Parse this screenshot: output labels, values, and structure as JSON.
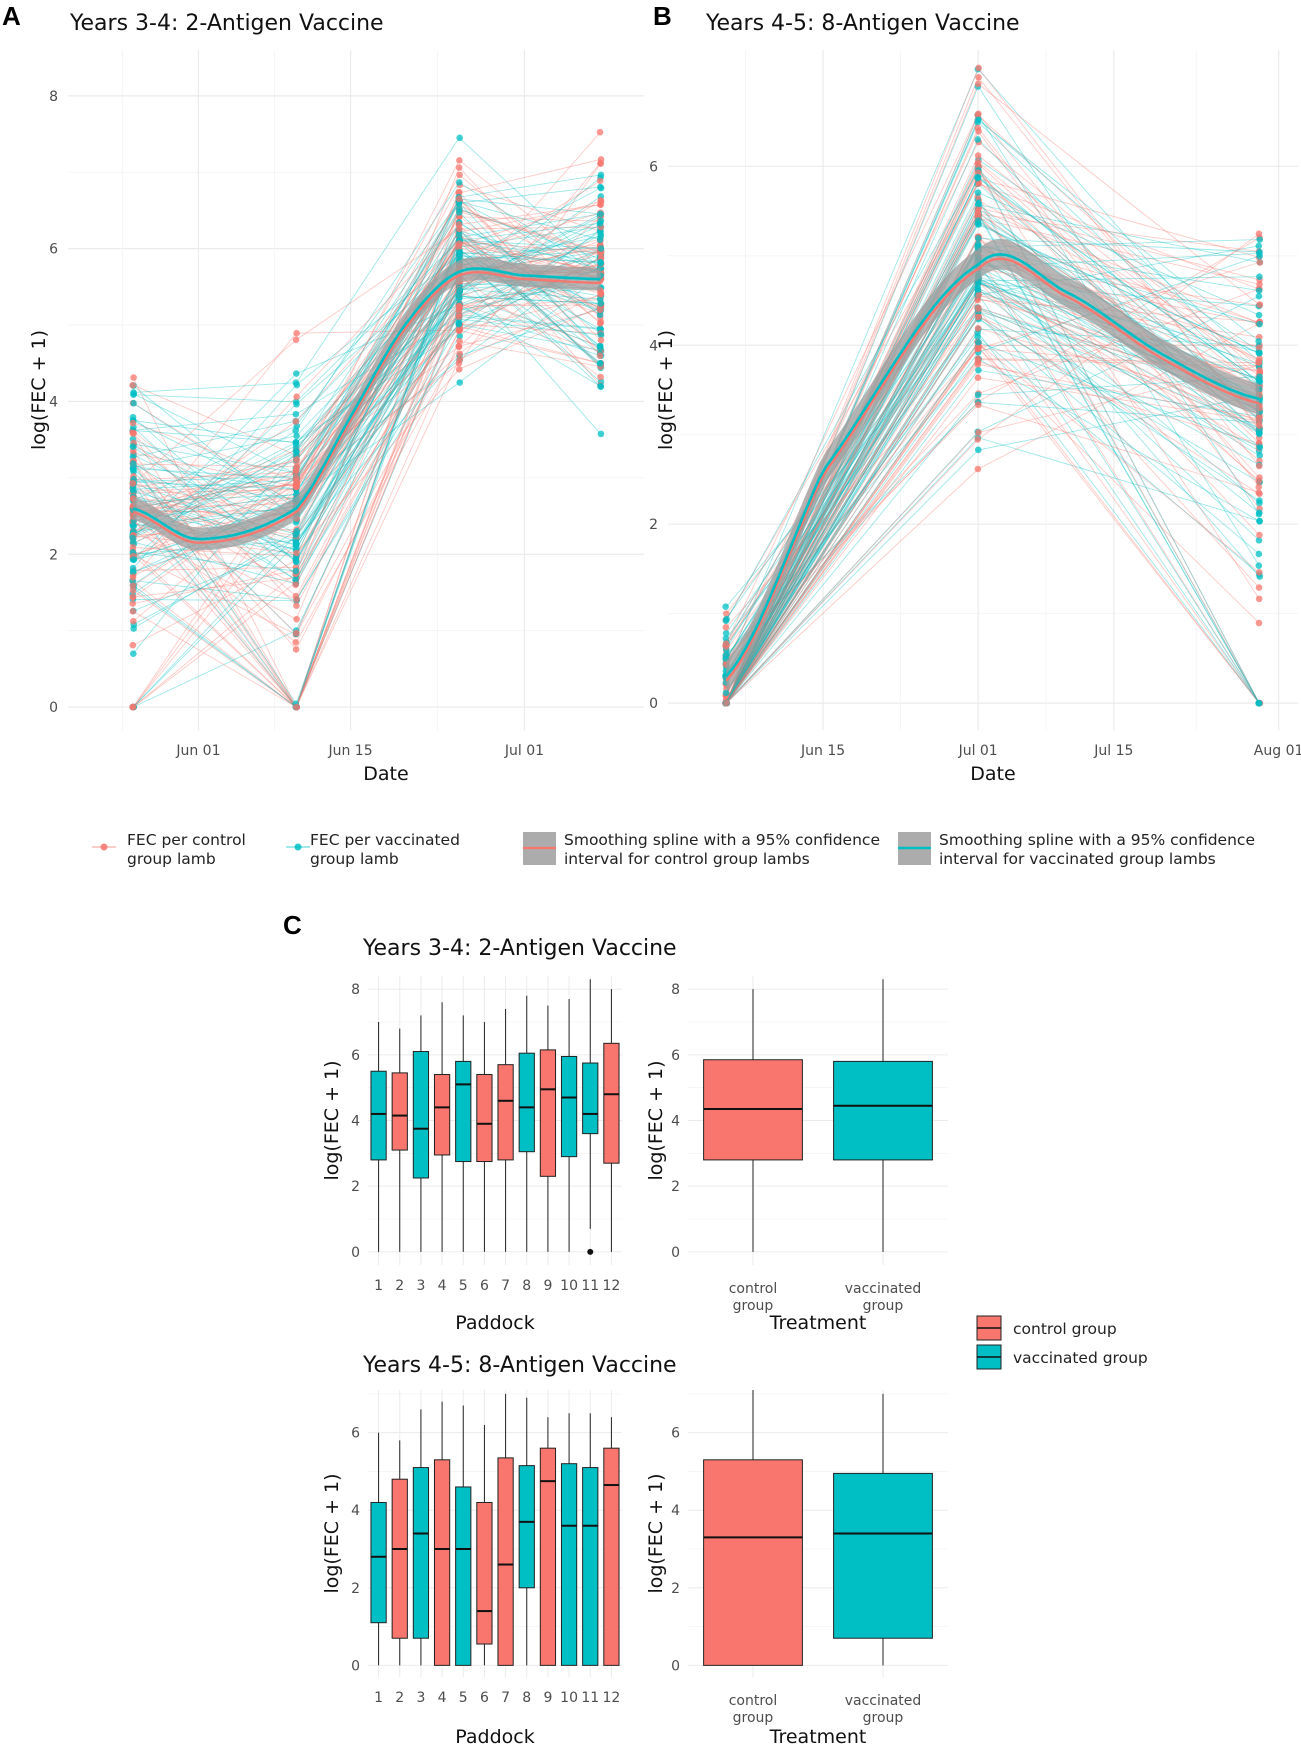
{
  "figure": {
    "panel_labels": [
      "A",
      "B",
      "C"
    ]
  },
  "colors": {
    "control": "#F8766D",
    "vaccinated": "#00BFC4",
    "ribbon": "#9e9e9e",
    "grid": "#ebebeb",
    "tick_text": "#4d4d4d"
  },
  "legend_A_B": [
    {
      "id": "control-point",
      "line1": "FEC per control",
      "line2": "group lamb"
    },
    {
      "id": "vacc-point",
      "line1": "FEC per vaccinated",
      "line2": "group lamb"
    },
    {
      "id": "control-spline",
      "line1": "Smoothing spline with a 95% confidence",
      "line2": "interval for control group lambs"
    },
    {
      "id": "vacc-spline",
      "line1": "Smoothing spline with a 95% confidence",
      "line2": "interval for vaccinated group lambs"
    }
  ],
  "legend_C": [
    "control group",
    "vaccinated group"
  ],
  "chart_data": [
    {
      "id": "A",
      "type": "line",
      "title": "Years 3-4: 2-Antigen Vaccine",
      "xlabel": "Date",
      "ylabel": "log(FEC + 1)",
      "x_ticks": [
        "Jun 01",
        "Jun 15",
        "Jul 01"
      ],
      "y_ticks": [
        0,
        2,
        4,
        6,
        8
      ],
      "ylim": [
        -0.3,
        8.6
      ],
      "sampling_dates": [
        "May 26",
        "Jun 10",
        "Jun 25",
        "Jul 08"
      ],
      "series": [
        {
          "name": "Smoothing spline (vaccinated group)",
          "x": [
            "May 26",
            "Jun 01",
            "Jun 10",
            "Jun 15",
            "Jun 20",
            "Jun 25",
            "Jul 01",
            "Jul 08"
          ],
          "values": [
            2.6,
            2.2,
            2.6,
            3.8,
            5.0,
            5.7,
            5.65,
            5.6
          ]
        },
        {
          "name": "Smoothing spline (control group)",
          "x": [
            "May 26",
            "Jun 01",
            "Jun 10",
            "Jun 15",
            "Jun 20",
            "Jun 25",
            "Jul 01",
            "Jul 08"
          ],
          "values": [
            2.55,
            2.15,
            2.55,
            3.75,
            4.95,
            5.65,
            5.6,
            5.55
          ]
        }
      ]
    },
    {
      "id": "B",
      "type": "line",
      "title": "Years 4-5: 8-Antigen Vaccine",
      "xlabel": "Date",
      "ylabel": "log(FEC + 1)",
      "x_ticks": [
        "Jun 15",
        "Jul 01",
        "Jul 15",
        "Aug 01"
      ],
      "y_ticks": [
        0,
        2,
        4,
        6
      ],
      "ylim": [
        -0.3,
        7.3
      ],
      "sampling_dates": [
        "Jun 05",
        "Jul 01",
        "Jul 30"
      ],
      "series": [
        {
          "name": "Smoothing spline (vaccinated group)",
          "x": [
            "Jun 05",
            "Jun 15",
            "Jul 01",
            "Jul 10",
            "Jul 20",
            "Jul 30"
          ],
          "values": [
            0.3,
            2.6,
            4.9,
            4.6,
            3.9,
            3.4
          ]
        },
        {
          "name": "Smoothing spline (control group)",
          "x": [
            "Jun 05",
            "Jun 15",
            "Jul 01",
            "Jul 10",
            "Jul 20",
            "Jul 30"
          ],
          "values": [
            0.25,
            2.55,
            4.85,
            4.55,
            3.85,
            3.35
          ]
        }
      ]
    },
    {
      "id": "C1-paddock",
      "type": "box",
      "title": "Years 3-4: 2-Antigen Vaccine",
      "xlabel": "Paddock",
      "ylabel": "log(FEC + 1)",
      "categories": [
        "1",
        "2",
        "3",
        "4",
        "5",
        "6",
        "7",
        "8",
        "9",
        "10",
        "11",
        "12"
      ],
      "y_ticks": [
        0,
        2,
        4,
        6,
        8
      ],
      "ylim": [
        -0.4,
        8.4
      ],
      "boxes": [
        {
          "group": "vaccinated",
          "min": 0,
          "q1": 2.8,
          "median": 4.2,
          "q3": 5.5,
          "max": 7.0
        },
        {
          "group": "control",
          "min": 0,
          "q1": 3.1,
          "median": 4.15,
          "q3": 5.45,
          "max": 6.8
        },
        {
          "group": "vaccinated",
          "min": 0,
          "q1": 2.25,
          "median": 3.75,
          "q3": 6.1,
          "max": 7.2
        },
        {
          "group": "control",
          "min": 0,
          "q1": 2.95,
          "median": 4.4,
          "q3": 5.4,
          "max": 7.6
        },
        {
          "group": "vaccinated",
          "min": 0,
          "q1": 2.75,
          "median": 5.1,
          "q3": 5.8,
          "max": 7.2
        },
        {
          "group": "control",
          "min": 0,
          "q1": 2.75,
          "median": 3.9,
          "q3": 5.4,
          "max": 7.0
        },
        {
          "group": "control",
          "min": 0,
          "q1": 2.8,
          "median": 4.6,
          "q3": 5.7,
          "max": 7.4
        },
        {
          "group": "vaccinated",
          "min": 0,
          "q1": 3.05,
          "median": 4.4,
          "q3": 6.05,
          "max": 7.8
        },
        {
          "group": "control",
          "min": 0,
          "q1": 2.3,
          "median": 4.95,
          "q3": 6.15,
          "max": 7.5
        },
        {
          "group": "vaccinated",
          "min": 0,
          "q1": 2.9,
          "median": 4.7,
          "q3": 5.95,
          "max": 7.7
        },
        {
          "group": "vaccinated",
          "min": 0.7,
          "q1": 3.6,
          "median": 4.2,
          "q3": 5.75,
          "max": 8.3,
          "outliers": [
            0
          ]
        },
        {
          "group": "control",
          "min": 0,
          "q1": 2.7,
          "median": 4.8,
          "q3": 6.35,
          "max": 8.0
        }
      ]
    },
    {
      "id": "C1-treatment",
      "type": "box",
      "xlabel": "Treatment",
      "ylabel": "log(FEC + 1)",
      "categories": [
        "control group",
        "vaccinated group"
      ],
      "y_ticks": [
        0,
        2,
        4,
        6,
        8
      ],
      "ylim": [
        -0.4,
        8.4
      ],
      "boxes": [
        {
          "group": "control",
          "min": 0,
          "q1": 2.8,
          "median": 4.35,
          "q3": 5.85,
          "max": 8.0
        },
        {
          "group": "vaccinated",
          "min": 0,
          "q1": 2.8,
          "median": 4.45,
          "q3": 5.8,
          "max": 8.3
        }
      ]
    },
    {
      "id": "C2-paddock",
      "type": "box",
      "title": "Years 4-5: 8-Antigen Vaccine",
      "xlabel": "Paddock",
      "ylabel": "log(FEC + 1)",
      "categories": [
        "1",
        "2",
        "3",
        "4",
        "5",
        "6",
        "7",
        "8",
        "9",
        "10",
        "11",
        "12"
      ],
      "y_ticks": [
        0,
        2,
        4,
        6
      ],
      "ylim": [
        -0.3,
        7.1
      ],
      "boxes": [
        {
          "group": "vaccinated",
          "min": 0,
          "q1": 1.1,
          "median": 2.8,
          "q3": 4.2,
          "max": 6.0
        },
        {
          "group": "control",
          "min": 0,
          "q1": 0.7,
          "median": 3.0,
          "q3": 4.8,
          "max": 5.8
        },
        {
          "group": "vaccinated",
          "min": 0,
          "q1": 0.7,
          "median": 3.4,
          "q3": 5.1,
          "max": 6.6
        },
        {
          "group": "control",
          "min": 0,
          "q1": 0,
          "median": 3.0,
          "q3": 5.3,
          "max": 6.8
        },
        {
          "group": "vaccinated",
          "min": 0,
          "q1": 0,
          "median": 3.0,
          "q3": 4.6,
          "max": 6.7
        },
        {
          "group": "control",
          "min": 0,
          "q1": 0.55,
          "median": 1.4,
          "q3": 4.2,
          "max": 6.2
        },
        {
          "group": "control",
          "min": 0,
          "q1": 0,
          "median": 2.6,
          "q3": 5.35,
          "max": 7.0
        },
        {
          "group": "vaccinated",
          "min": 0,
          "q1": 2.0,
          "median": 3.7,
          "q3": 5.15,
          "max": 6.9
        },
        {
          "group": "control",
          "min": 0,
          "q1": 0,
          "median": 4.75,
          "q3": 5.6,
          "max": 6.4
        },
        {
          "group": "vaccinated",
          "min": 0,
          "q1": 0,
          "median": 3.6,
          "q3": 5.2,
          "max": 6.5
        },
        {
          "group": "vaccinated",
          "min": 0,
          "q1": 0,
          "median": 3.6,
          "q3": 5.1,
          "max": 6.5
        },
        {
          "group": "control",
          "min": 0,
          "q1": 0,
          "median": 4.65,
          "q3": 5.6,
          "max": 6.4
        }
      ]
    },
    {
      "id": "C2-treatment",
      "type": "box",
      "xlabel": "Treatment",
      "ylabel": "log(FEC + 1)",
      "categories": [
        "control group",
        "vaccinated group"
      ],
      "y_ticks": [
        0,
        2,
        4,
        6
      ],
      "ylim": [
        -0.3,
        7.1
      ],
      "boxes": [
        {
          "group": "control",
          "min": 0,
          "q1": 0,
          "median": 3.3,
          "q3": 5.3,
          "max": 7.1
        },
        {
          "group": "vaccinated",
          "min": 0,
          "q1": 0.7,
          "median": 3.4,
          "q3": 4.95,
          "max": 7.0
        }
      ]
    }
  ]
}
